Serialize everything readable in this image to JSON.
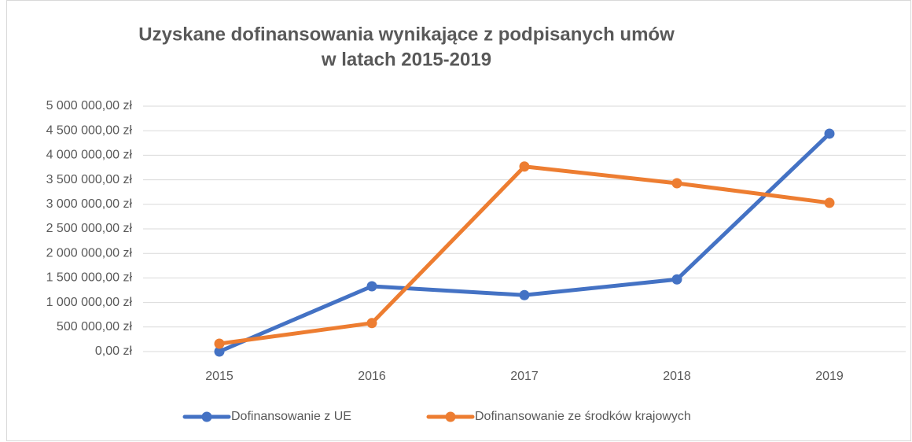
{
  "chart_data": {
    "type": "line",
    "title": [
      "Uzyskane dofinansowania wynikające z podpisanych umów",
      "w latach 2015-2019"
    ],
    "categories": [
      "2015",
      "2016",
      "2017",
      "2018",
      "2019"
    ],
    "series": [
      {
        "name": "Dofinansowanie z UE",
        "color": "#4472c4",
        "values": [
          0,
          1330000,
          1150000,
          1470000,
          4440000
        ]
      },
      {
        "name": "Dofinansowanie ze środków krajowych",
        "color": "#ed7d31",
        "values": [
          160000,
          580000,
          3770000,
          3430000,
          3030000
        ]
      }
    ],
    "ylim": [
      0,
      5000000
    ],
    "yticks": [
      {
        "value": 0,
        "label": "0,00 zł"
      },
      {
        "value": 500000,
        "label": "500 000,00 zł"
      },
      {
        "value": 1000000,
        "label": "1 000 000,00 zł"
      },
      {
        "value": 1500000,
        "label": "1 500 000,00 zł"
      },
      {
        "value": 2000000,
        "label": "2 000 000,00 zł"
      },
      {
        "value": 2500000,
        "label": "2 500 000,00 zł"
      },
      {
        "value": 3000000,
        "label": "3 000 000,00 zł"
      },
      {
        "value": 3500000,
        "label": "3 500 000,00 zł"
      },
      {
        "value": 4000000,
        "label": "4 000 000,00 zł"
      },
      {
        "value": 4500000,
        "label": "4 500 000,00 zł"
      },
      {
        "value": 5000000,
        "label": "5 000 000,00 zł"
      }
    ],
    "grid": true,
    "legend": "bottom"
  }
}
